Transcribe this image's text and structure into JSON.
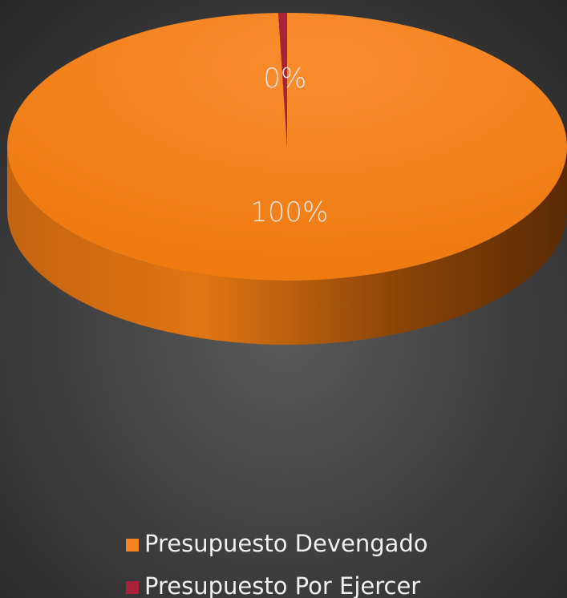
{
  "chart_data": {
    "type": "pie",
    "categories": [
      "Presupuesto Devengado",
      "Presupuesto Por Ejercer"
    ],
    "values": [
      99.5,
      0.5
    ],
    "value_labels": [
      "100%",
      "0%"
    ],
    "colors": [
      "#f5841f",
      "#a8223a"
    ],
    "legend": "bottom"
  }
}
